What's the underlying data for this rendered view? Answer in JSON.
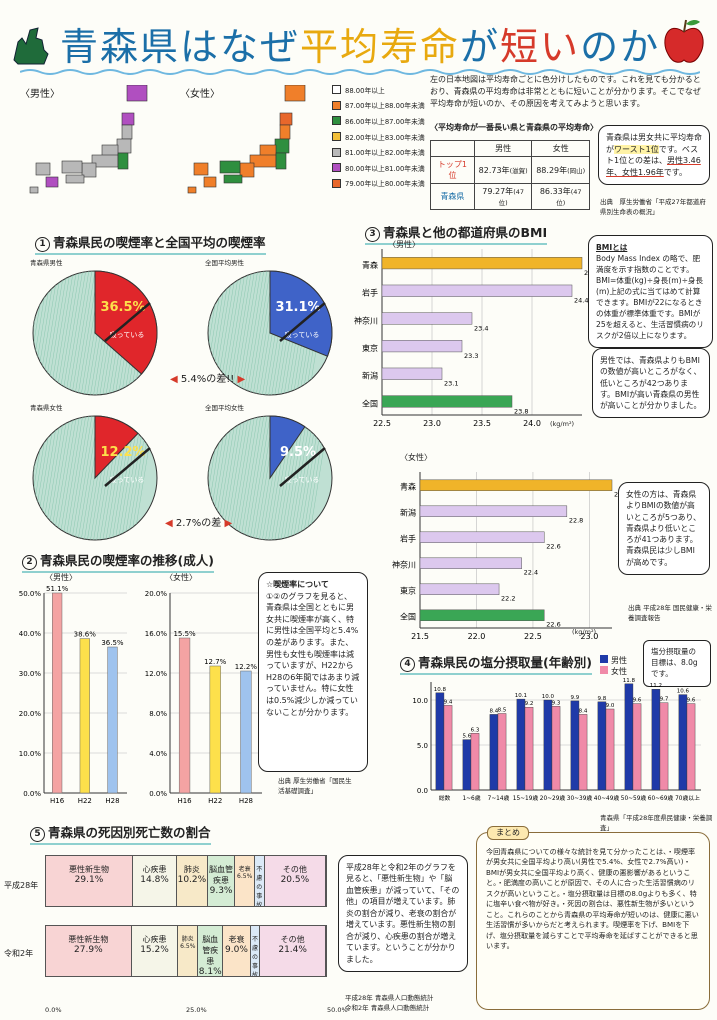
{
  "title": {
    "part1": "青森県はなぜ",
    "part2": "平均寿命",
    "part3": "が",
    "part4": "短い",
    "part5": "のか"
  },
  "map": {
    "male_label": "〈男性〉",
    "female_label": "〈女性〉",
    "legend": [
      {
        "label": "88.00年以上",
        "color": "#ffffff"
      },
      {
        "label": "87.00年以上88.00年未満",
        "color": "#f07f2a"
      },
      {
        "label": "86.00年以上87.00年未満",
        "color": "#2f8f3f"
      },
      {
        "label": "82.00年以上83.00年未満",
        "color": "#f3c03a"
      },
      {
        "label": "81.00年以上82.00年未満",
        "color": "#b8b8b8"
      },
      {
        "label": "80.00年以上81.00年未満",
        "color": "#b04fc0"
      },
      {
        "label": "79.00年以上80.00年未満",
        "color": "#e8672b"
      }
    ],
    "description": "左の日本地図は平均寿命ごとに色分けしたものです。これを見ても分かるとおり、青森県の平均寿命は非常とともに短いことが分かります。そこでなぜ平均寿命が短いのか、その原因を考えてみようと思います。"
  },
  "life_table": {
    "caption": "〈平均寿命が一番長い県と青森県の平均寿命〉",
    "col_male": "男性",
    "col_female": "女性",
    "rows": [
      {
        "label": "トップ1位",
        "male": "82.73年",
        "male_pref": "(滋賀)",
        "female": "88.29年",
        "female_pref": "(岡山)"
      },
      {
        "label": "青森県",
        "male": "79.27年",
        "male_pref": "(47位)",
        "female": "86.33年",
        "female_pref": "(47位)"
      }
    ]
  },
  "note_worst": {
    "text1": "青森県は男女共に平均寿命が",
    "text2": "ワースト1位",
    "text3": "です。ベスト1位との差は、",
    "text4": "男性3.46年、女性1.96年",
    "text5": "です。",
    "source": "出典　厚生労働省「平成27年都道府県別生命表の概況」"
  },
  "sec1": {
    "num": "1",
    "title": "青森県民の喫煙率と全国平均の喫煙率",
    "pies": [
      {
        "label": "青森県男性",
        "pct": "36.5%",
        "value": 36.5,
        "color": "#e0262b",
        "tag": "吸っている"
      },
      {
        "label": "全国平均男性",
        "pct": "31.1%",
        "value": 31.1,
        "color": "#3f63c8",
        "tag": "吸っている"
      },
      {
        "label": "青森県女性",
        "pct": "12.2%",
        "value": 12.2,
        "color": "#e0262b",
        "tag": "吸っている"
      },
      {
        "label": "全国平均女性",
        "pct": "9.5%",
        "value": 9.5,
        "color": "#3f63c8",
        "tag": "吸っている"
      }
    ],
    "diff_male": "5.4%の差!!",
    "diff_female": "2.7%の差"
  },
  "sec2": {
    "num": "2",
    "title": "青森県民の喫煙率の推移(成人)",
    "male_label": "〈男性〉",
    "female_label": "〈女性〉",
    "note_title": "☆喫煙率について",
    "note_text": "①②のグラフを見ると、青森県は全国とともに男女共に喫煙率が高く、特に男性は全国平均と5.4%の差があります。また、男性も女性も喫煙率は減っていますが、H22からH28の6年間ではあまり減っていません。特に女性は0.5%減少しか減っていないことが分かります。",
    "source": "出典 厚生労働省「国民生活基礎調査」"
  },
  "sec3": {
    "num": "3",
    "title": "青森県と他の都道府県のBMI",
    "male_label": "〈男性〉",
    "female_label": "〈女性〉",
    "unit": "(kg/m²)",
    "bmi_note_title": "BMIとは",
    "bmi_note": "Body Mass Index の略で、肥満度を示す指数のことです。BMI=体重(kg)÷身長(m)÷身長(m)上記の式に当てはめて計算できます。BMIが22になるときの体重が標準体重です。BMIが25を超えると、生活習慣病のリスクが2倍以上になります。",
    "male_note": "男性では、青森県よりもBMIの数値が高いところがなく、低いところが42つあります。BMIが高い青森県の男性が高いことが分かりました。",
    "female_note": "女性の方は、青森県よりBMIの数値が高いところが5つあり、青森県より低いところが41つあります。青森県民は少しBMIが高めです。",
    "source": "出典 平成28年 国民健康・栄養調査報告"
  },
  "sec4": {
    "num": "4",
    "title": "青森県民の塩分摂取量(年齢別)",
    "legend_m": "男性",
    "legend_f": "女性",
    "note": "塩分摂取量の目標は、8.0gです。",
    "source": "青森県「平成28年度県民健康・栄養調査」"
  },
  "sec5": {
    "num": "5",
    "title": "青森県の死因別死亡数の割合",
    "row1_label": "平成28年",
    "row2_label": "令和2年",
    "note": "平成28年と令和2年のグラフを見ると、「悪性新生物」や「脳血管疾患」が減っていて、「その他」の項目が増えています。肺炎の割合が減り、老衰の割合が増えています。悪性新生物の割合が減り、心疾患の割合が増えています。ということが分かりました。",
    "source1": "平成28年 青森県人口動態統計",
    "source2": "令和2年 青森県人口動態統計"
  },
  "summary": {
    "title": "まとめ",
    "text": "今回青森県についての様々な統計を見て分かったことは、・喫煙率が男女共に全国平均より高い(男性で5.4%、女性で2.7%高い)・BMIが男女共に全国平均より高く、健康の悪影響があるということ。・肥満度の高いことが原因で、その人に合った生活習慣病のリスクが高いということ。・塩分摂取量は目標の8.0gよりも多く、特に塩辛い食べ物が好き。・死因の割合は、悪性新生物が多いということ。これらのことから青森県の平均寿命が短いのは、健康に悪い生活習慣が多いからだと考えられます。喫煙率を下げ、BMIを下げ、塩分摂取量を減らすことで平均寿命を延ばすことができると思います。"
  },
  "chart_data": [
    {
      "type": "pie",
      "title": "青森県男性",
      "values": [
        36.5,
        63.5
      ],
      "categories": [
        "吸っている",
        ""
      ]
    },
    {
      "type": "pie",
      "title": "全国平均男性",
      "values": [
        31.1,
        68.9
      ],
      "categories": [
        "吸っている",
        ""
      ]
    },
    {
      "type": "pie",
      "title": "青森県女性",
      "values": [
        12.2,
        87.8
      ],
      "categories": [
        "吸っている",
        ""
      ]
    },
    {
      "type": "pie",
      "title": "全国平均女性",
      "values": [
        9.5,
        90.5
      ],
      "categories": [
        "吸っている",
        ""
      ]
    },
    {
      "type": "bar",
      "title": "〈男性〉",
      "categories": [
        "H16",
        "H22",
        "H28"
      ],
      "values": [
        51.1,
        38.6,
        36.5
      ],
      "labels": [
        "51.1%",
        "38.6%",
        "36.5%"
      ],
      "colors": [
        "#f4a3a3",
        "#fde04b",
        "#9fc3ee"
      ],
      "ylim": [
        0,
        50
      ],
      "yticks": [
        "0.0%",
        "10.0%",
        "20.0%",
        "30.0%",
        "40.0%",
        "50.0%"
      ]
    },
    {
      "type": "bar",
      "title": "〈女性〉",
      "categories": [
        "H16",
        "H22",
        "H28"
      ],
      "values": [
        15.5,
        12.7,
        12.2
      ],
      "labels": [
        "15.5%",
        "12.7%",
        "12.2%"
      ],
      "colors": [
        "#f4a3a3",
        "#fde04b",
        "#9fc3ee"
      ],
      "ylim": [
        0,
        20
      ],
      "yticks": [
        "0.0%",
        "4.0%",
        "8.0%",
        "12.0%",
        "16.0%",
        "20.0%"
      ]
    },
    {
      "type": "bar",
      "title": "〈男性〉",
      "orientation": "horizontal",
      "categories": [
        "青森",
        "岩手",
        "神奈川",
        "東京",
        "新潟",
        "全国"
      ],
      "values": [
        24.5,
        24.4,
        23.4,
        23.3,
        23.1,
        23.8
      ],
      "labels": [
        "24.5",
        "24.4",
        "23.4",
        "23.3",
        "23.1",
        "23.8"
      ],
      "colors": [
        "#f0b429",
        "#dcc8ee",
        "#dcc8ee",
        "#dcc8ee",
        "#dcc8ee",
        "#3aa655"
      ],
      "xlim": [
        22.5,
        24.5
      ],
      "xticks": [
        "22.5",
        "23.0",
        "23.5",
        "24.0"
      ]
    },
    {
      "type": "bar",
      "title": "〈女性〉",
      "orientation": "horizontal",
      "categories": [
        "青森",
        "新潟",
        "岩手",
        "神奈川",
        "東京",
        "全国"
      ],
      "values": [
        23.2,
        22.8,
        22.6,
        22.4,
        22.2,
        22.6
      ],
      "labels": [
        "23.2",
        "22.8",
        "22.6",
        "22.4",
        "22.2",
        "22.6"
      ],
      "colors": [
        "#f0b429",
        "#dcc8ee",
        "#dcc8ee",
        "#dcc8ee",
        "#dcc8ee",
        "#3aa655"
      ],
      "xlim": [
        21.5,
        23.2
      ],
      "xticks": [
        "21.5",
        "22.0",
        "22.5",
        "23.0"
      ]
    },
    {
      "type": "bar",
      "title": "青森県民の塩分摂取量(年齢別)",
      "categories": [
        "総数",
        "1~6歳",
        "7~14歳",
        "15~19歳",
        "20~29歳",
        "30~39歳",
        "40~49歳",
        "50~59歳",
        "60~69歳",
        "70歳以上"
      ],
      "series": [
        {
          "name": "男性",
          "values": [
            10.8,
            5.6,
            8.4,
            10.1,
            10.0,
            9.9,
            9.8,
            11.8,
            11.2,
            10.6
          ],
          "color": "#1f3aa8"
        },
        {
          "name": "女性",
          "values": [
            9.4,
            6.3,
            8.5,
            9.2,
            9.3,
            8.4,
            9.0,
            9.6,
            9.7,
            9.6
          ],
          "color": "#f08aa8"
        }
      ],
      "ylim": [
        0,
        12
      ],
      "yticks": [
        "0.0",
        "5.0",
        "10.0"
      ]
    },
    {
      "type": "bar",
      "title": "青森県の死因別死亡数の割合",
      "orientation": "horizontal-stacked",
      "rows": [
        "平成28年",
        "令和2年"
      ],
      "series": [
        {
          "name": "悪性新生物",
          "values": [
            29.1,
            27.9
          ],
          "color": "#f8d4d4"
        },
        {
          "name": "心疾患",
          "values": [
            14.8,
            15.2
          ],
          "color": "#f5f5e8"
        },
        {
          "name": "肺炎",
          "values": [
            10.2,
            6.5
          ],
          "color": "#f7e9c8"
        },
        {
          "name": "脳血管疾患",
          "values": [
            9.3,
            8.1
          ],
          "color": "#d4ecd4"
        },
        {
          "name": "老衰",
          "values": [
            6.5,
            9.0
          ],
          "color": "#fbe4c8"
        },
        {
          "name": "不慮の事故",
          "values": [
            3.3,
            3.1
          ],
          "color": "#dbe9f7"
        },
        {
          "name": "その他",
          "values": [
            20.5,
            21.4
          ],
          "color": "#f5dbe8"
        }
      ],
      "xticks": [
        "0.0%",
        "25.0%",
        "50.0%"
      ]
    }
  ]
}
